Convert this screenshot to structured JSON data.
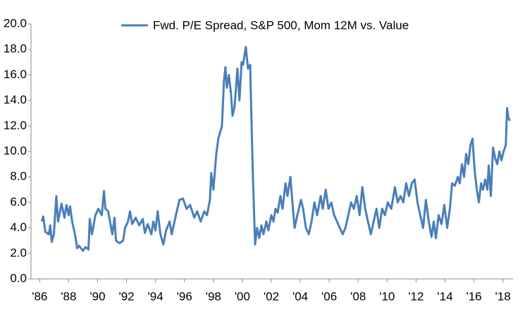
{
  "chart_data": {
    "type": "line",
    "x": [
      1986.15,
      1986.24,
      1986.39,
      1986.63,
      1986.73,
      1986.83,
      1986.98,
      1987.15,
      1987.27,
      1987.51,
      1987.71,
      1987.85,
      1988.0,
      1988.1,
      1988.24,
      1988.44,
      1988.59,
      1988.73,
      1988.98,
      1989.17,
      1989.37,
      1989.46,
      1989.61,
      1989.85,
      1990.05,
      1990.29,
      1990.44,
      1990.54,
      1990.73,
      1991.02,
      1991.17,
      1991.27,
      1991.51,
      1991.76,
      1991.9,
      1992.1,
      1992.24,
      1992.39,
      1992.63,
      1992.88,
      1993.12,
      1993.27,
      1993.46,
      1993.71,
      1993.85,
      1994.0,
      1994.15,
      1994.34,
      1994.54,
      1994.73,
      1994.98,
      1995.12,
      1995.41,
      1995.66,
      1995.9,
      1996.15,
      1996.39,
      1996.68,
      1996.88,
      1997.12,
      1997.37,
      1997.56,
      1997.76,
      1997.85,
      1998.0,
      1998.2,
      1998.34,
      1998.59,
      1998.73,
      1998.83,
      1998.93,
      1999.07,
      1999.22,
      1999.32,
      1999.46,
      1999.66,
      1999.8,
      1999.95,
      2000.05,
      2000.24,
      2000.39,
      2000.54,
      2000.63,
      2000.73,
      2000.88,
      2001.02,
      2001.17,
      2001.32,
      2001.46,
      2001.66,
      2001.8,
      2002.0,
      2002.15,
      2002.29,
      2002.44,
      2002.63,
      2002.78,
      2002.98,
      2003.12,
      2003.32,
      2003.46,
      2003.61,
      2003.8,
      2004.05,
      2004.2,
      2004.39,
      2004.59,
      2004.78,
      2004.98,
      2005.17,
      2005.41,
      2005.56,
      2005.76,
      2005.95,
      2006.15,
      2006.34,
      2006.54,
      2006.73,
      2006.93,
      2007.12,
      2007.32,
      2007.51,
      2007.71,
      2007.9,
      2008.1,
      2008.29,
      2008.49,
      2008.68,
      2008.88,
      2009.07,
      2009.27,
      2009.46,
      2009.66,
      2009.85,
      2010.05,
      2010.29,
      2010.54,
      2010.73,
      2010.93,
      2011.12,
      2011.32,
      2011.51,
      2011.71,
      2011.9,
      2012.1,
      2012.29,
      2012.49,
      2012.68,
      2012.88,
      2013.07,
      2013.22,
      2013.37,
      2013.56,
      2013.76,
      2013.95,
      2014.15,
      2014.34,
      2014.49,
      2014.68,
      2014.88,
      2015.02,
      2015.17,
      2015.32,
      2015.46,
      2015.61,
      2015.76,
      2015.9,
      2016.05,
      2016.2,
      2016.34,
      2016.49,
      2016.63,
      2016.78,
      2016.93,
      2017.02,
      2017.17,
      2017.32,
      2017.46,
      2017.61,
      2017.76,
      2017.9,
      2018.05,
      2018.2,
      2018.29,
      2018.39,
      2018.49
    ],
    "series": [
      {
        "name": "Fwd. P/E Spread, S&P 500, Mom 12M vs. Value",
        "color": "#4a7ebb",
        "values": [
          4.5,
          4.9,
          3.7,
          3.5,
          4.2,
          2.9,
          3.5,
          6.5,
          4.5,
          5.9,
          4.8,
          5.8,
          5.0,
          5.7,
          4.5,
          3.5,
          2.4,
          2.6,
          2.2,
          2.5,
          2.3,
          4.7,
          3.5,
          5.0,
          5.5,
          5.0,
          6.9,
          5.5,
          5.3,
          3.5,
          4.8,
          3.0,
          2.8,
          3.0,
          4.0,
          4.5,
          5.3,
          4.3,
          4.8,
          4.2,
          4.7,
          3.6,
          4.3,
          3.5,
          4.5,
          3.8,
          5.3,
          3.5,
          2.7,
          3.8,
          4.5,
          3.5,
          5.0,
          6.2,
          6.3,
          5.5,
          5.8,
          4.8,
          5.3,
          4.5,
          5.3,
          5.0,
          6.2,
          8.3,
          7.0,
          9.8,
          11.0,
          12.0,
          15.5,
          16.6,
          15.0,
          16.0,
          14.5,
          12.8,
          13.5,
          16.5,
          14.0,
          17.0,
          16.8,
          18.2,
          16.5,
          16.8,
          12.5,
          8.0,
          2.7,
          4.0,
          3.2,
          4.2,
          3.5,
          4.5,
          3.8,
          5.0,
          4.5,
          5.5,
          5.2,
          6.5,
          5.5,
          7.5,
          6.5,
          8.0,
          6.0,
          4.0,
          5.0,
          6.2,
          5.5,
          4.0,
          3.5,
          4.5,
          6.0,
          5.0,
          6.5,
          5.5,
          7.0,
          5.5,
          6.0,
          5.0,
          4.5,
          4.0,
          3.5,
          4.0,
          5.0,
          6.0,
          5.5,
          6.5,
          5.0,
          7.2,
          5.5,
          4.5,
          3.5,
          4.5,
          5.5,
          4.0,
          5.5,
          5.0,
          6.0,
          5.5,
          7.2,
          6.0,
          6.5,
          6.0,
          7.5,
          6.5,
          7.5,
          7.8,
          6.0,
          5.0,
          4.0,
          6.2,
          4.5,
          3.3,
          4.5,
          3.2,
          5.0,
          4.3,
          5.8,
          4.0,
          5.5,
          7.5,
          7.3,
          8.0,
          7.5,
          9.0,
          8.0,
          9.8,
          9.0,
          10.5,
          11.0,
          8.5,
          7.0,
          6.0,
          7.5,
          7.0,
          7.8,
          7.0,
          8.9,
          6.5,
          10.3,
          9.5,
          9.0,
          10.0,
          9.3,
          10.0,
          10.5,
          13.4,
          12.6,
          12.4
        ]
      }
    ],
    "xlim": [
      1985.4,
      2018.7
    ],
    "xticks": [
      {
        "value": 1986,
        "label": "'86"
      },
      {
        "value": 1988,
        "label": "'88"
      },
      {
        "value": 1990,
        "label": "'90"
      },
      {
        "value": 1992,
        "label": "'92"
      },
      {
        "value": 1994,
        "label": "'94"
      },
      {
        "value": 1996,
        "label": "'96"
      },
      {
        "value": 1998,
        "label": "'98"
      },
      {
        "value": 2000,
        "label": "'00"
      },
      {
        "value": 2002,
        "label": "'02"
      },
      {
        "value": 2004,
        "label": "'04"
      },
      {
        "value": 2006,
        "label": "'06"
      },
      {
        "value": 2008,
        "label": "'08"
      },
      {
        "value": 2010,
        "label": "'10"
      },
      {
        "value": 2012,
        "label": "'12"
      },
      {
        "value": 2014,
        "label": "'14"
      },
      {
        "value": 2016,
        "label": "'16"
      },
      {
        "value": 2018,
        "label": "'18"
      }
    ],
    "ylim": [
      0,
      20
    ],
    "yticks": [
      {
        "value": 0,
        "label": "0.0"
      },
      {
        "value": 2,
        "label": "2.0"
      },
      {
        "value": 4,
        "label": "4.0"
      },
      {
        "value": 6,
        "label": "6.0"
      },
      {
        "value": 8,
        "label": "8.0"
      },
      {
        "value": 10,
        "label": "10.0"
      },
      {
        "value": 12,
        "label": "12.0"
      },
      {
        "value": 14,
        "label": "14.0"
      },
      {
        "value": 16,
        "label": "16.0"
      },
      {
        "value": 18,
        "label": "18.0"
      },
      {
        "value": 20,
        "label": "20.0"
      }
    ],
    "grid": false,
    "legend": "top"
  }
}
